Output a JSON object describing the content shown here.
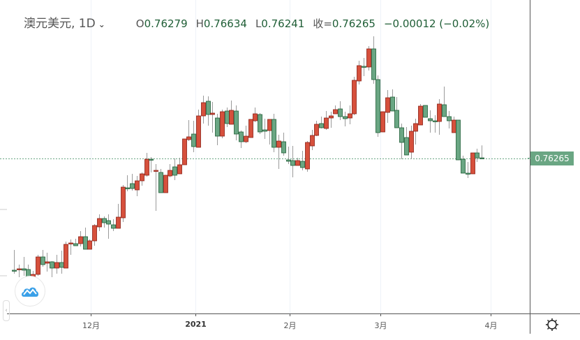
{
  "header": {
    "symbol": "澳元美元, 1D",
    "dropdown_icon": "chevron-down-icon",
    "open_label": "O",
    "open_value": "0.76279",
    "high_label": "H",
    "high_value": "0.76634",
    "low_label": "L",
    "low_value": "0.76241",
    "close_label": "收=",
    "close_value": "0.76265",
    "change": "−0.00012 (−0.02%)"
  },
  "price_axis": {
    "last_price_label": "0.76265"
  },
  "colors": {
    "up": "#d6503c",
    "down": "#6aa683",
    "up_border": "#8b1f14",
    "down_border": "#1f5e36",
    "grid": "#eef2f8",
    "wick": "#9a9a9a"
  },
  "icons": {
    "logo": "cloud-chart-logo-icon",
    "settings": "gear-icon",
    "collapse": "chevron-left-icon"
  },
  "chart_data": {
    "type": "candlestick",
    "title": "澳元美元, 1D",
    "xlabel": "",
    "ylabel": "",
    "ylim": [
      0.717,
      0.808
    ],
    "grid": "vertical",
    "last_price": 0.76265,
    "x_ticks": [
      {
        "label": "12月",
        "at": 16.2,
        "bold": false
      },
      {
        "label": "2021",
        "at": 38.4,
        "bold": true
      },
      {
        "label": "2月",
        "at": 58.3,
        "bold": false
      },
      {
        "label": "3月",
        "at": 77.5,
        "bold": false
      },
      {
        "label": "4月",
        "at": 100.9,
        "bold": false
      }
    ],
    "ohlc_fields": [
      "open",
      "high",
      "low",
      "close"
    ],
    "candles": [
      [
        0.7306,
        0.7364,
        0.7296,
        0.7304
      ],
      [
        0.7308,
        0.7322,
        0.7286,
        0.731
      ],
      [
        0.731,
        0.7344,
        0.729,
        0.7306
      ],
      [
        0.7308,
        0.7322,
        0.7284,
        0.7286
      ],
      [
        0.7286,
        0.7304,
        0.7284,
        0.7294
      ],
      [
        0.7294,
        0.735,
        0.729,
        0.7344
      ],
      [
        0.7344,
        0.7364,
        0.7316,
        0.7322
      ],
      [
        0.7326,
        0.7356,
        0.7302,
        0.733
      ],
      [
        0.733,
        0.7332,
        0.7286,
        0.7312
      ],
      [
        0.7312,
        0.735,
        0.7296,
        0.7328
      ],
      [
        0.7328,
        0.7362,
        0.7296,
        0.7314
      ],
      [
        0.7312,
        0.7388,
        0.7312,
        0.738
      ],
      [
        0.7382,
        0.7394,
        0.735,
        0.7384
      ],
      [
        0.7382,
        0.7396,
        0.7376,
        0.7376
      ],
      [
        0.7382,
        0.7418,
        0.7374,
        0.7402
      ],
      [
        0.7402,
        0.7428,
        0.7366,
        0.7366
      ],
      [
        0.7366,
        0.7394,
        0.7366,
        0.739
      ],
      [
        0.739,
        0.7438,
        0.7376,
        0.7434
      ],
      [
        0.743,
        0.7466,
        0.7418,
        0.7454
      ],
      [
        0.7454,
        0.746,
        0.7428,
        0.7442
      ],
      [
        0.7448,
        0.7466,
        0.7396,
        0.7438
      ],
      [
        0.7436,
        0.7452,
        0.7418,
        0.7426
      ],
      [
        0.7426,
        0.7496,
        0.7426,
        0.7458
      ],
      [
        0.7456,
        0.755,
        0.7444,
        0.7544
      ],
      [
        0.7542,
        0.7578,
        0.7532,
        0.754
      ],
      [
        0.7554,
        0.7582,
        0.7534,
        0.754
      ],
      [
        0.7536,
        0.7576,
        0.7518,
        0.7562
      ],
      [
        0.7562,
        0.7586,
        0.7548,
        0.7582
      ],
      [
        0.7578,
        0.7642,
        0.7574,
        0.7624
      ],
      [
        0.7624,
        0.763,
        0.7586,
        0.7622
      ],
      [
        0.759,
        0.761,
        0.7476,
        0.7592
      ],
      [
        0.7586,
        0.7596,
        0.7528,
        0.7528
      ],
      [
        0.7528,
        0.7578,
        0.7528,
        0.7578
      ],
      [
        0.7576,
        0.761,
        0.7572,
        0.7592
      ],
      [
        0.7602,
        0.7626,
        0.7564,
        0.7578
      ],
      [
        0.7582,
        0.7628,
        0.7582,
        0.7608
      ],
      [
        0.7608,
        0.7682,
        0.7608,
        0.7682
      ],
      [
        0.768,
        0.7736,
        0.7676,
        0.7688
      ],
      [
        0.7696,
        0.7734,
        0.7644,
        0.766
      ],
      [
        0.7658,
        0.7766,
        0.7658,
        0.7748
      ],
      [
        0.7748,
        0.7806,
        0.7726,
        0.7786
      ],
      [
        0.779,
        0.7804,
        0.772,
        0.7752
      ],
      [
        0.7752,
        0.7788,
        0.77,
        0.7756
      ],
      [
        0.7742,
        0.7754,
        0.7664,
        0.769
      ],
      [
        0.769,
        0.7766,
        0.7684,
        0.776
      ],
      [
        0.7762,
        0.7772,
        0.7716,
        0.7726
      ],
      [
        0.7724,
        0.7792,
        0.7724,
        0.7764
      ],
      [
        0.7762,
        0.7778,
        0.7678,
        0.7696
      ],
      [
        0.7702,
        0.7706,
        0.7656,
        0.7674
      ],
      [
        0.7674,
        0.772,
        0.767,
        0.769
      ],
      [
        0.7686,
        0.7738,
        0.7686,
        0.7738
      ],
      [
        0.7734,
        0.7772,
        0.773,
        0.7754
      ],
      [
        0.7752,
        0.7756,
        0.7696,
        0.7702
      ],
      [
        0.7708,
        0.774,
        0.7682,
        0.7704
      ],
      [
        0.7706,
        0.7738,
        0.7666,
        0.7738
      ],
      [
        0.7738,
        0.7754,
        0.7644,
        0.7658
      ],
      [
        0.7658,
        0.7694,
        0.7596,
        0.7676
      ],
      [
        0.7674,
        0.77,
        0.7634,
        0.7642
      ],
      [
        0.7622,
        0.766,
        0.761,
        0.7618
      ],
      [
        0.762,
        0.7662,
        0.7572,
        0.7606
      ],
      [
        0.7606,
        0.7628,
        0.7606,
        0.762
      ],
      [
        0.7618,
        0.7648,
        0.7592,
        0.76
      ],
      [
        0.7596,
        0.7676,
        0.7588,
        0.7672
      ],
      [
        0.7662,
        0.7708,
        0.765,
        0.7692
      ],
      [
        0.7692,
        0.7734,
        0.769,
        0.7724
      ],
      [
        0.7726,
        0.7746,
        0.7712,
        0.7714
      ],
      [
        0.7712,
        0.7762,
        0.7708,
        0.7742
      ],
      [
        0.7742,
        0.776,
        0.7714,
        0.7748
      ],
      [
        0.7754,
        0.7778,
        0.7754,
        0.7766
      ],
      [
        0.7768,
        0.779,
        0.7736,
        0.7746
      ],
      [
        0.7746,
        0.776,
        0.7718,
        0.774
      ],
      [
        0.7742,
        0.7778,
        0.7724,
        0.7754
      ],
      [
        0.7754,
        0.786,
        0.775,
        0.785
      ],
      [
        0.7848,
        0.7906,
        0.7838,
        0.7892
      ],
      [
        0.789,
        0.7914,
        0.7862,
        0.7888
      ],
      [
        0.7888,
        0.7948,
        0.7878,
        0.794
      ],
      [
        0.794,
        0.7976,
        0.784,
        0.7852
      ],
      [
        0.7852,
        0.7864,
        0.7688,
        0.77
      ],
      [
        0.7702,
        0.776,
        0.7702,
        0.776
      ],
      [
        0.7758,
        0.7822,
        0.7728,
        0.78
      ],
      [
        0.7802,
        0.7824,
        0.7762,
        0.7762
      ],
      [
        0.7764,
        0.7802,
        0.7714,
        0.7714
      ],
      [
        0.7714,
        0.7726,
        0.7624,
        0.7672
      ],
      [
        0.7686,
        0.7716,
        0.7636,
        0.7636
      ],
      [
        0.7644,
        0.772,
        0.7624,
        0.7704
      ],
      [
        0.7704,
        0.774,
        0.7666,
        0.7726
      ],
      [
        0.7722,
        0.7782,
        0.7722,
        0.7776
      ],
      [
        0.7778,
        0.7778,
        0.7744,
        0.7744
      ],
      [
        0.774,
        0.7764,
        0.77,
        0.7734
      ],
      [
        0.7734,
        0.775,
        0.77,
        0.7732
      ],
      [
        0.7732,
        0.7796,
        0.7694,
        0.7782
      ],
      [
        0.778,
        0.7832,
        0.7746,
        0.7746
      ],
      [
        0.7746,
        0.7762,
        0.7712,
        0.7734
      ],
      [
        0.77,
        0.7746,
        0.77,
        0.7736
      ],
      [
        0.7736,
        0.7736,
        0.7622,
        0.7622
      ],
      [
        0.7624,
        0.7634,
        0.7584,
        0.7584
      ],
      [
        0.7584,
        0.7616,
        0.757,
        0.7582
      ],
      [
        0.7582,
        0.7642,
        0.7582,
        0.7642
      ],
      [
        0.7642,
        0.7654,
        0.7616,
        0.7628
      ],
      [
        0.76279,
        0.76634,
        0.76241,
        0.76265
      ]
    ]
  }
}
